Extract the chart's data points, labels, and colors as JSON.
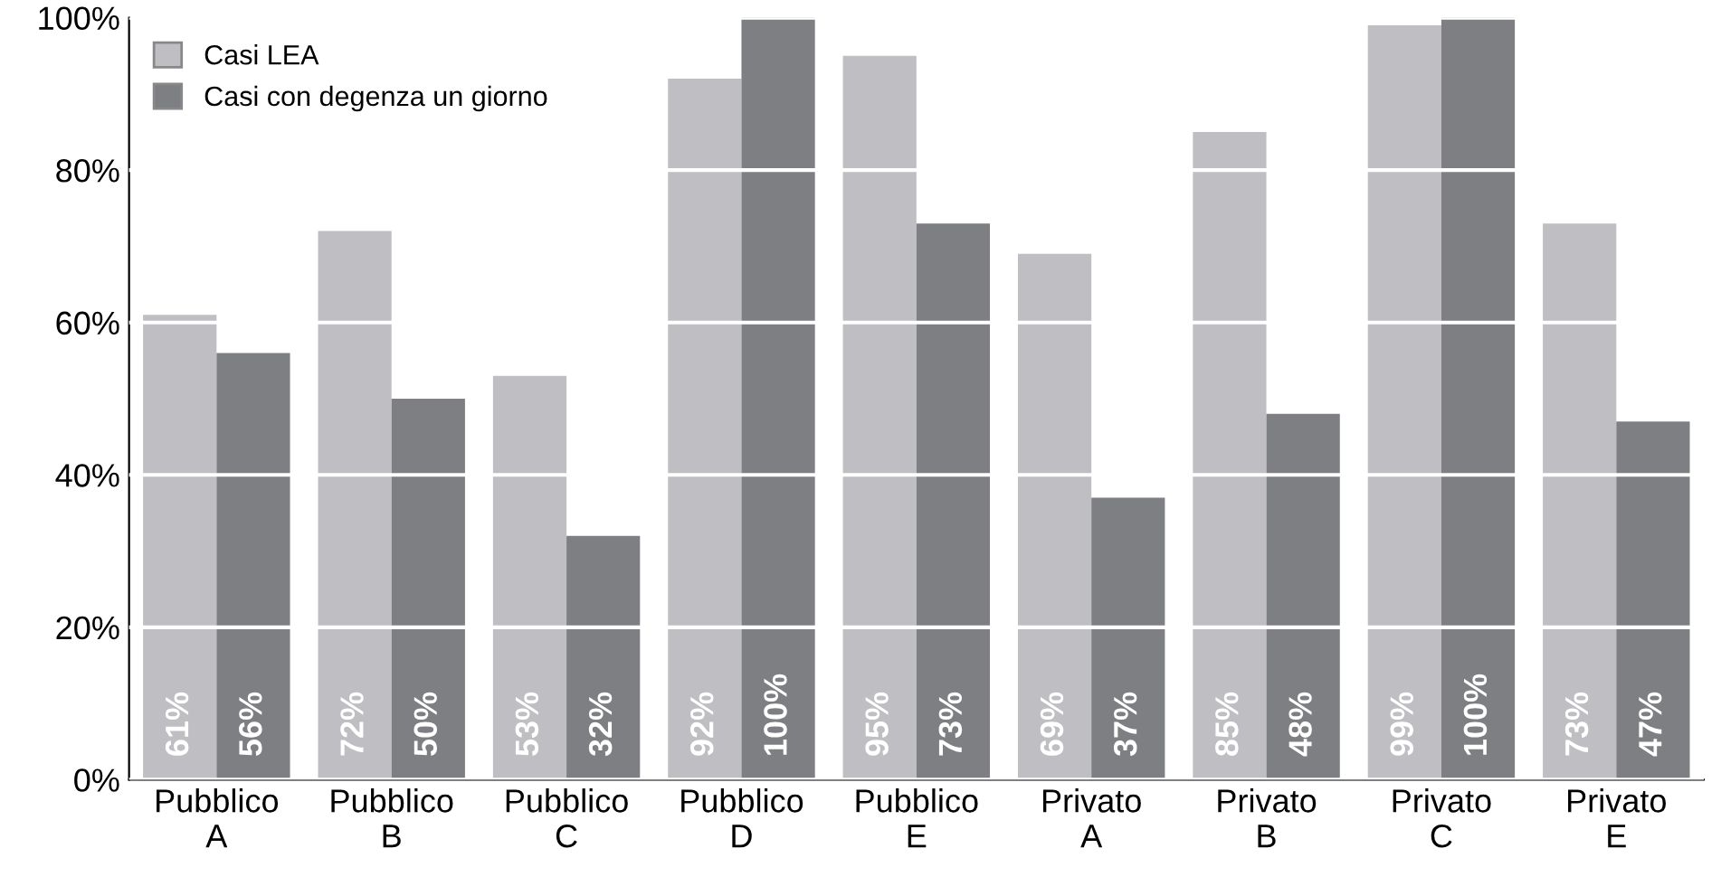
{
  "chart_data": {
    "type": "bar",
    "categories": [
      "Pubblico\nA",
      "Pubblico\nB",
      "Pubblico\nC",
      "Pubblico\nD",
      "Pubblico\nE",
      "Privato\nA",
      "Privato\nB",
      "Privato\nC",
      "Privato\nE"
    ],
    "series": [
      {
        "name": "Casi LEA",
        "color": "#bfbfc3",
        "values": [
          61,
          72,
          53,
          92,
          95,
          69,
          85,
          99,
          73
        ],
        "value_labels": [
          "61%",
          "72%",
          "53%",
          "92%",
          "95%",
          "69%",
          "85%",
          "99%",
          "73%"
        ]
      },
      {
        "name": "Casi con degenza un giorno",
        "color": "#7e7f83",
        "values": [
          56,
          50,
          32,
          100,
          73,
          37,
          48,
          100,
          47
        ],
        "value_labels": [
          "56%",
          "50%",
          "32%",
          "100%",
          "73%",
          "37%",
          "48%",
          "100%",
          "47%"
        ]
      }
    ],
    "ylim": [
      0,
      100
    ],
    "yticks": [
      {
        "value": 0,
        "label": "0%"
      },
      {
        "value": 20,
        "label": "20%"
      },
      {
        "value": 40,
        "label": "40%"
      },
      {
        "value": 60,
        "label": "60%"
      },
      {
        "value": 80,
        "label": "80%"
      },
      {
        "value": 100,
        "label": "100%"
      }
    ],
    "grid": "y",
    "legend": "top left"
  }
}
